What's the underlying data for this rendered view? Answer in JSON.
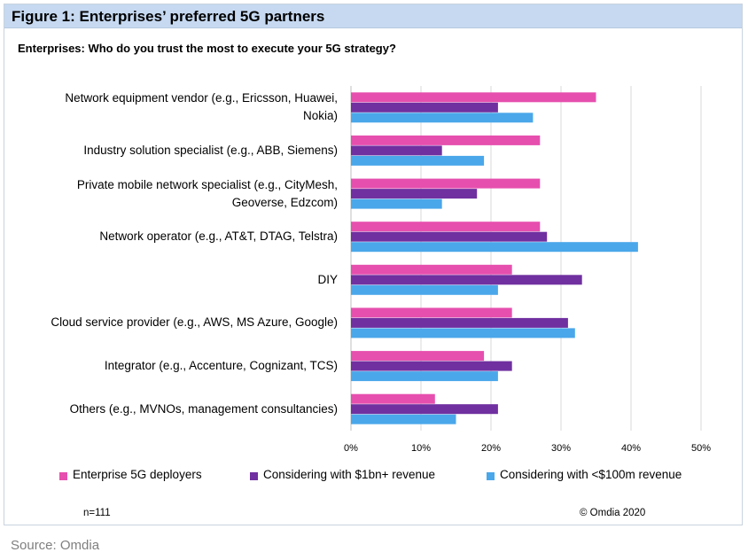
{
  "figure": {
    "title": "Figure 1: Enterprises’ preferred 5G partners",
    "subtitle": "Enterprises: Who do you trust the most to execute your 5G strategy?",
    "sample_note": "n=111",
    "copyright": "© Omdia 2020",
    "source": "Source: Omdia"
  },
  "chart_data": {
    "type": "bar",
    "orientation": "horizontal",
    "title": "Enterprises: Who do you trust the most to execute your 5G strategy?",
    "xlabel": "",
    "ylabel": "",
    "xlim": [
      0,
      50
    ],
    "xticks": [
      "0%",
      "10%",
      "20%",
      "30%",
      "40%",
      "50%"
    ],
    "grid": true,
    "legend_position": "bottom",
    "categories": [
      [
        "Network equipment vendor (e.g., Ericsson, Huawei,",
        "Nokia)"
      ],
      [
        "Industry solution specialist (e.g., ABB, Siemens)"
      ],
      [
        "Private mobile network specialist (e.g., CityMesh,",
        "Geoverse, Edzcom)"
      ],
      [
        "Network operator (e.g., AT&T, DTAG, Telstra)"
      ],
      [
        "DIY"
      ],
      [
        "Cloud service provider (e.g., AWS, MS Azure, Google)"
      ],
      [
        "Integrator (e.g., Accenture, Cognizant, TCS)"
      ],
      [
        "Others (e.g., MVNOs, management consultancies)"
      ]
    ],
    "series": [
      {
        "name": "Enterprise 5G deployers",
        "color": "#e64fae",
        "values": [
          35,
          27,
          27,
          27,
          23,
          23,
          19,
          12
        ]
      },
      {
        "name": "Considering with $1bn+ revenue",
        "color": "#7030a0",
        "values": [
          21,
          13,
          18,
          28,
          33,
          31,
          23,
          21
        ]
      },
      {
        "name": "Considering with <$100m revenue",
        "color": "#4aa7ea",
        "values": [
          26,
          19,
          13,
          41,
          21,
          32,
          21,
          15
        ]
      }
    ]
  }
}
